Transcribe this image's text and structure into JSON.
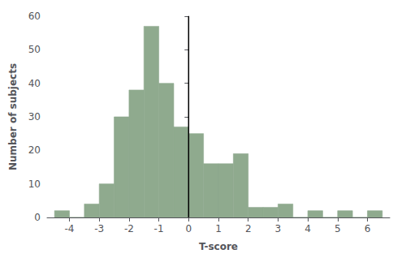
{
  "chart_data": {
    "type": "histogram",
    "xlabel": "T-score",
    "ylabel": "Number of subjects",
    "bins": [
      -4.5,
      -4.0,
      -3.5,
      -3.0,
      -2.5,
      -2.0,
      -1.5,
      -1.0,
      -0.5,
      0.0,
      0.5,
      1.0,
      1.5,
      2.0,
      2.5,
      3.0,
      3.5,
      4.0,
      4.5,
      5.0,
      5.5,
      6.0,
      6.5
    ],
    "values": [
      2,
      0,
      4,
      10,
      30,
      38,
      57,
      40,
      27,
      25,
      16,
      16,
      19,
      3,
      3,
      4,
      0,
      2,
      0,
      2,
      0,
      2
    ],
    "color": "#8faa8e",
    "reference_lines": [
      {
        "x": 0,
        "color": "black"
      }
    ],
    "xlim": [
      -4.75,
      6.75
    ],
    "ylim": [
      0,
      60
    ],
    "xticks": [
      -4,
      -3,
      -2,
      -1,
      0,
      1,
      2,
      3,
      4,
      5,
      6
    ],
    "yticks": [
      0,
      10,
      20,
      30,
      40,
      50,
      60
    ],
    "grid": false
  }
}
